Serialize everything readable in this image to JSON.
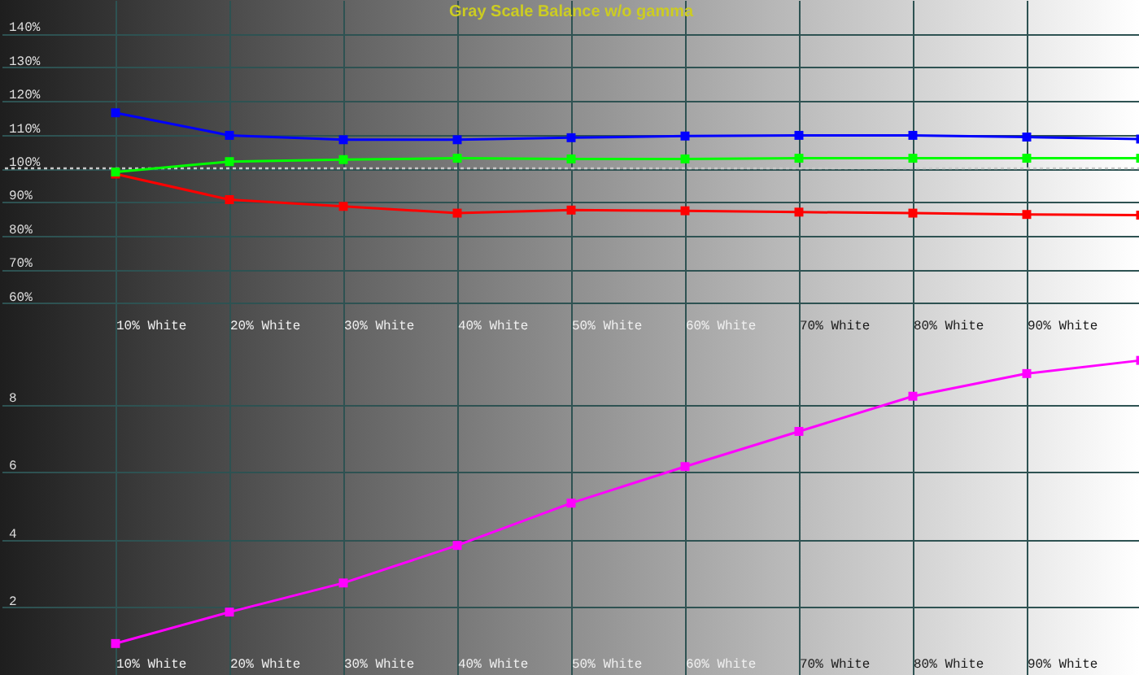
{
  "chart_data": [
    {
      "type": "line",
      "title": "Gray Scale Balance w/o gamma",
      "categories": [
        "10% White",
        "20% White",
        "30% White",
        "40% White",
        "50% White",
        "60% White",
        "70% White",
        "80% White",
        "90% White",
        null
      ],
      "series": [
        {
          "color": "#0000ff",
          "values": [
            116.5,
            109.8,
            108.5,
            108.5,
            109.1,
            109.6,
            109.8,
            109.8,
            109.3,
            108.7
          ]
        },
        {
          "color": "#00ff00",
          "values": [
            98.9,
            102,
            102.6,
            103,
            102.8,
            102.8,
            103,
            103,
            103,
            103
          ]
        },
        {
          "color": "#ff0000",
          "values": [
            98.3,
            90.7,
            88.7,
            86.7,
            87.6,
            87.4,
            87,
            86.7,
            86.3,
            86.1
          ]
        }
      ],
      "ylim": [
        50,
        150
      ],
      "yticks": [
        {
          "value": 60,
          "label": "60%"
        },
        {
          "value": 70,
          "label": "70%"
        },
        {
          "value": 80,
          "label": "80%"
        },
        {
          "value": 90,
          "label": "90%"
        },
        {
          "value": 100,
          "label": "100%"
        },
        {
          "value": 110,
          "label": "110%"
        },
        {
          "value": 120,
          "label": "120%"
        },
        {
          "value": 130,
          "label": "130%"
        },
        {
          "value": 140,
          "label": "140%"
        }
      ],
      "ref_lines": [
        {
          "axis": "y",
          "value": 100,
          "color": "#c8c8c8",
          "line_style": "dotted"
        }
      ],
      "grid": true,
      "legend": false,
      "marker": "square"
    },
    {
      "type": "line",
      "categories": [
        "10% White",
        "20% White",
        "30% White",
        "40% White",
        "50% White",
        "60% White",
        "70% White",
        "80% White",
        "90% White",
        null
      ],
      "series": [
        {
          "color": "#ff00ff",
          "values": [
            0.93,
            1.86,
            2.72,
            3.83,
            5.08,
            6.16,
            7.2,
            8.24,
            8.91,
            9.3
          ]
        }
      ],
      "ylim": [
        0,
        10
      ],
      "yticks": [
        2,
        4,
        6,
        8
      ],
      "grid": true,
      "legend": false,
      "marker": "square"
    }
  ]
}
